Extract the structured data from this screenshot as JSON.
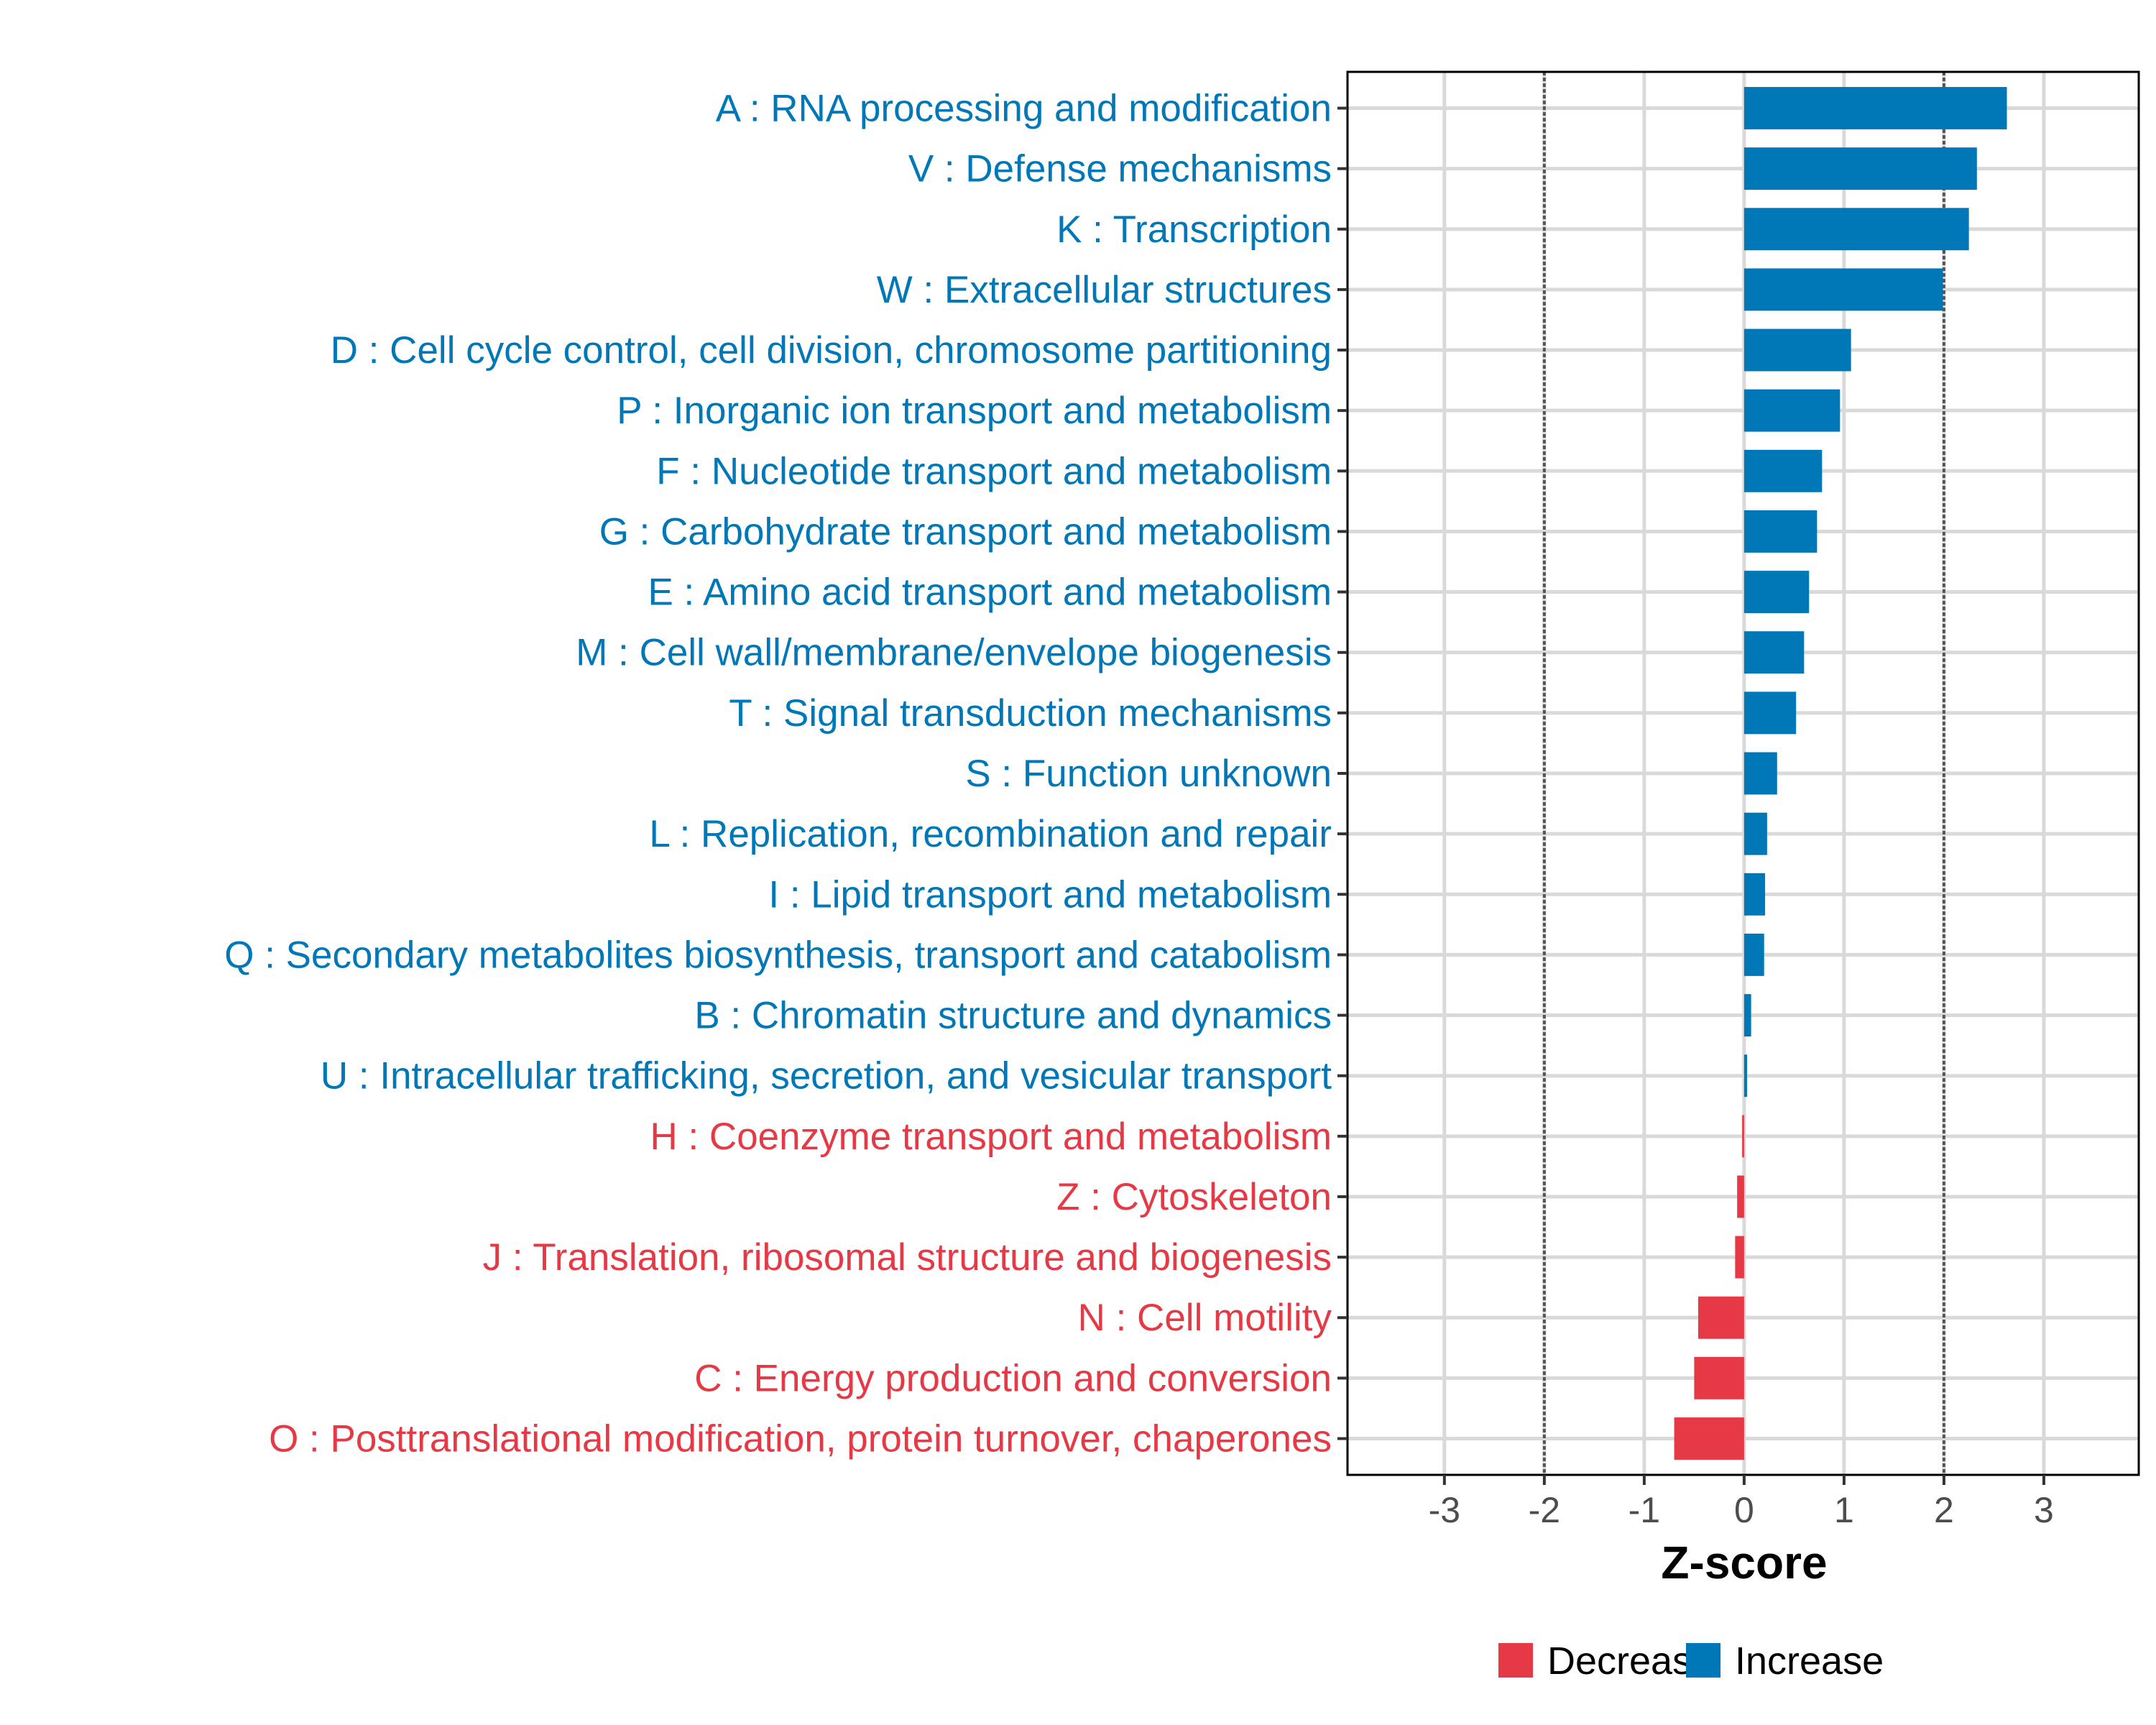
{
  "chart_data": {
    "type": "bar",
    "orientation": "horizontal",
    "title": "",
    "xlabel": "Z-score",
    "ylabel": "",
    "xlim": [
      -3.97,
      3.95
    ],
    "xticks": [
      -3,
      -2,
      -1,
      0,
      1,
      2,
      3
    ],
    "xtick_labels": [
      "-3",
      "-2",
      "-1",
      "0",
      "1",
      "2",
      "3"
    ],
    "reference_lines": [
      -2,
      2
    ],
    "grid": true,
    "legend_position": "bottom",
    "legend": [
      {
        "name": "Decrease",
        "color": "#E63946"
      },
      {
        "name": "Increase",
        "color": "#0077B6"
      }
    ],
    "colors": {
      "Increase": "#0077B6",
      "Decrease": "#E63946"
    },
    "categories": [
      "A : RNA processing and modification",
      "V : Defense mechanisms",
      "K : Transcription",
      "W : Extracellular structures",
      "D : Cell cycle control, cell division, chromosome partitioning",
      "P : Inorganic ion transport and metabolism",
      "F : Nucleotide transport and metabolism",
      "G : Carbohydrate transport and metabolism",
      "E : Amino acid transport and metabolism",
      "M : Cell wall/membrane/envelope biogenesis",
      "T : Signal transduction mechanisms",
      "S : Function unknown",
      "L : Replication, recombination and repair",
      "I : Lipid transport and metabolism",
      "Q : Secondary metabolites biosynthesis, transport and catabolism",
      "B : Chromatin structure and dynamics",
      "U : Intracellular trafficking, secretion, and vesicular transport",
      "H : Coenzyme transport and metabolism",
      "Z : Cytoskeleton",
      "J : Translation, ribosomal structure and biogenesis",
      "N : Cell motility",
      "C : Energy production and conversion",
      "O : Posttranslational modification, protein turnover, chaperones"
    ],
    "values": [
      2.63,
      2.33,
      2.25,
      1.99,
      1.07,
      0.96,
      0.78,
      0.73,
      0.65,
      0.6,
      0.52,
      0.33,
      0.23,
      0.21,
      0.2,
      0.07,
      0.03,
      -0.02,
      -0.07,
      -0.09,
      -0.46,
      -0.5,
      -0.7
    ],
    "direction": [
      "Increase",
      "Increase",
      "Increase",
      "Increase",
      "Increase",
      "Increase",
      "Increase",
      "Increase",
      "Increase",
      "Increase",
      "Increase",
      "Increase",
      "Increase",
      "Increase",
      "Increase",
      "Increase",
      "Increase",
      "Decrease",
      "Decrease",
      "Decrease",
      "Decrease",
      "Decrease",
      "Decrease"
    ]
  }
}
